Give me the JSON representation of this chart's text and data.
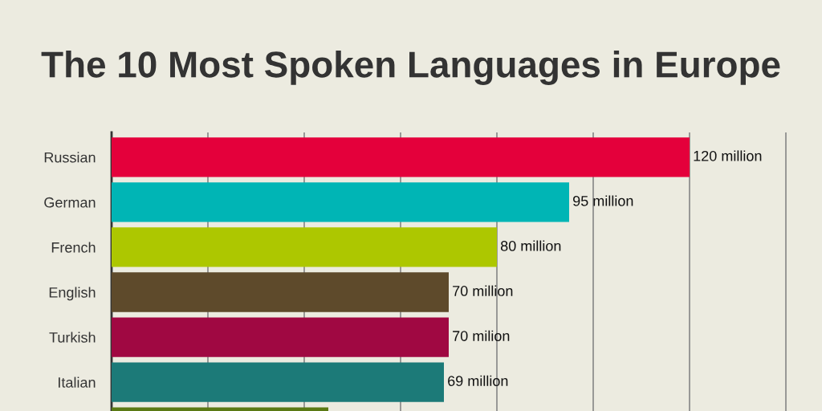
{
  "chart_data": {
    "type": "bar",
    "orientation": "horizontal",
    "title": "The 10 Most Spoken Languages in Europe",
    "categories": [
      "Russian",
      "German",
      "French",
      "English",
      "Turkish",
      "Italian",
      null
    ],
    "values": [
      120,
      95,
      80,
      70,
      70,
      69,
      45
    ],
    "colors": [
      "#e4003b",
      "#00b5b5",
      "#adc700",
      "#5e4a2b",
      "#a00842",
      "#1c7a78",
      "#5a7a14"
    ],
    "value_labels": [
      "120 million",
      "95 million",
      "80 million",
      "70 million",
      "70 milion",
      "69 million",
      null
    ],
    "xlim": [
      0,
      147.5
    ],
    "xticks": [
      {
        "value": 0,
        "label": null
      },
      {
        "value": 20,
        "label": null
      },
      {
        "value": 40,
        "label": null
      },
      {
        "value": 60,
        "label": null
      },
      {
        "value": 80,
        "label": null
      },
      {
        "value": 100,
        "label": null
      },
      {
        "value": 120,
        "label": null
      },
      {
        "value": 140,
        "label": null
      }
    ],
    "grid": "x",
    "tick_labels": "y"
  }
}
